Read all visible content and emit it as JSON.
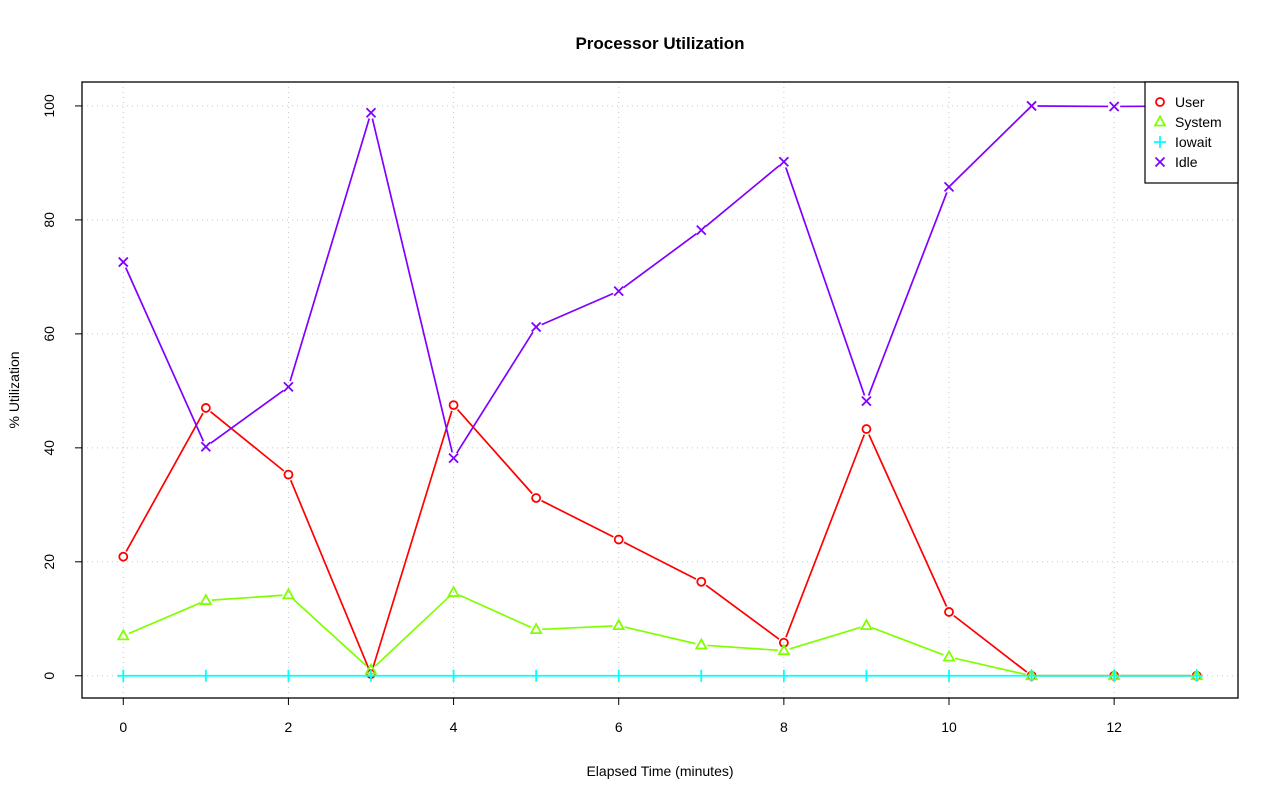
{
  "chart_data": {
    "type": "line",
    "title": "Processor Utilization",
    "xlabel": "Elapsed Time (minutes)",
    "ylabel": "% Utilization",
    "xlim": [
      -0.5,
      13.5
    ],
    "ylim": [
      -3.9,
      104.2
    ],
    "xticks": [
      0,
      2,
      4,
      6,
      8,
      10,
      12
    ],
    "yticks": [
      0,
      20,
      40,
      60,
      80,
      100
    ],
    "grid": true,
    "legend_position": "top-right",
    "x": [
      0,
      1,
      2,
      3,
      4,
      5,
      6,
      7,
      8,
      9,
      10,
      11,
      12,
      13
    ],
    "series": [
      {
        "name": "User",
        "color": "#ff0000",
        "marker": "circle",
        "values": [
          20.9,
          47.0,
          35.3,
          0.3,
          47.5,
          31.2,
          23.9,
          16.5,
          5.8,
          43.3,
          11.2,
          0,
          0,
          0
        ]
      },
      {
        "name": "System",
        "color": "#80ff00",
        "marker": "triangle",
        "values": [
          7.0,
          13.2,
          14.2,
          1.0,
          14.6,
          8.1,
          8.8,
          5.4,
          4.4,
          8.8,
          3.3,
          0,
          0,
          0
        ]
      },
      {
        "name": "Iowait",
        "color": "#00ffff",
        "marker": "plus",
        "values": [
          0,
          0,
          0,
          0,
          0,
          0,
          0,
          0,
          0,
          0,
          0,
          0,
          0,
          0
        ]
      },
      {
        "name": "Idle",
        "color": "#8000ff",
        "marker": "x",
        "values": [
          72.6,
          40.2,
          50.7,
          98.8,
          38.2,
          61.2,
          67.5,
          78.2,
          90.2,
          48.2,
          85.8,
          100,
          99.9,
          100
        ]
      }
    ]
  }
}
